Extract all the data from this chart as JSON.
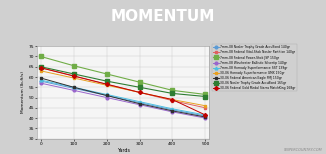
{
  "title": "MOMENTUM",
  "xlabel": "Yards",
  "ylabel": "Momentum (lb-ft/s)",
  "background_color": "#d0d0d0",
  "plot_bg_color": "#f5f5f5",
  "title_bar_color": "#666666",
  "red_bar_color": "#e05555",
  "xvals": [
    0,
    100,
    200,
    300,
    400,
    500
  ],
  "series": [
    {
      "label": "7mm-08 Nosler Trophy Grade AccuBond 140gr",
      "color": "#5b9bd5",
      "marker": "o",
      "markersize": 2.0,
      "linestyle": "-",
      "linewidth": 0.7,
      "values": [
        58.0,
        54.5,
        51.0,
        47.5,
        44.0,
        41.0
      ]
    },
    {
      "label": "7mm-08 Federal Vital-Shok Nosler Partition 140gr",
      "color": "#e06060",
      "marker": "s",
      "markersize": 2.0,
      "linestyle": "-",
      "linewidth": 0.7,
      "values": [
        64.5,
        60.5,
        56.5,
        52.5,
        48.5,
        45.0
      ]
    },
    {
      "label": "7mm-08 Federal Power-Shok JSP 150gr",
      "color": "#70ad47",
      "marker": "s",
      "markersize": 2.5,
      "linestyle": "-",
      "linewidth": 0.8,
      "values": [
        70.0,
        65.5,
        61.5,
        57.5,
        53.5,
        51.5
      ]
    },
    {
      "label": "7mm-08 Winchester Ballistic Silvertip 140gr",
      "color": "#9966cc",
      "marker": "o",
      "markersize": 2.0,
      "linestyle": "-",
      "linewidth": 0.7,
      "values": [
        57.0,
        53.5,
        50.0,
        46.5,
        43.0,
        40.0
      ]
    },
    {
      "label": "7mm-08 Hornady Superformance SST 139gr",
      "color": "#4dc0e0",
      "marker": "^",
      "markersize": 2.0,
      "linestyle": "-",
      "linewidth": 0.7,
      "values": [
        58.5,
        55.0,
        51.5,
        48.0,
        44.5,
        41.5
      ]
    },
    {
      "label": "30-06 Hornady Superformance GMX 150gr",
      "color": "#e8a020",
      "marker": "s",
      "markersize": 2.0,
      "linestyle": "-",
      "linewidth": 0.7,
      "values": [
        63.0,
        59.5,
        56.0,
        52.5,
        49.0,
        46.0
      ]
    },
    {
      "label": "30-06 Federal American Eagle FMJ 150gr",
      "color": "#303030",
      "marker": "s",
      "markersize": 2.0,
      "linestyle": "-",
      "linewidth": 0.7,
      "values": [
        59.5,
        55.0,
        51.0,
        47.0,
        43.5,
        40.5
      ]
    },
    {
      "label": "30-06 Nosler Trophy Grade AccuBond 165gr",
      "color": "#2e7d32",
      "marker": "s",
      "markersize": 2.5,
      "linestyle": "-",
      "linewidth": 0.8,
      "values": [
        65.0,
        61.5,
        58.0,
        55.0,
        52.0,
        50.5
      ]
    },
    {
      "label": "30-06 Federal Gold Medal Sierra MatchKing 168gr",
      "color": "#c00000",
      "marker": "D",
      "markersize": 2.0,
      "linestyle": "-",
      "linewidth": 0.7,
      "values": [
        64.5,
        60.5,
        56.5,
        52.5,
        49.0,
        41.5
      ]
    }
  ],
  "ylim": [
    30,
    75
  ],
  "yticks": [
    30,
    35,
    40,
    45,
    50,
    55,
    60,
    65,
    70,
    75
  ],
  "xticks": [
    0,
    100,
    200,
    300,
    400,
    500
  ],
  "watermark": "SNIPERCOUNTRY.COM"
}
